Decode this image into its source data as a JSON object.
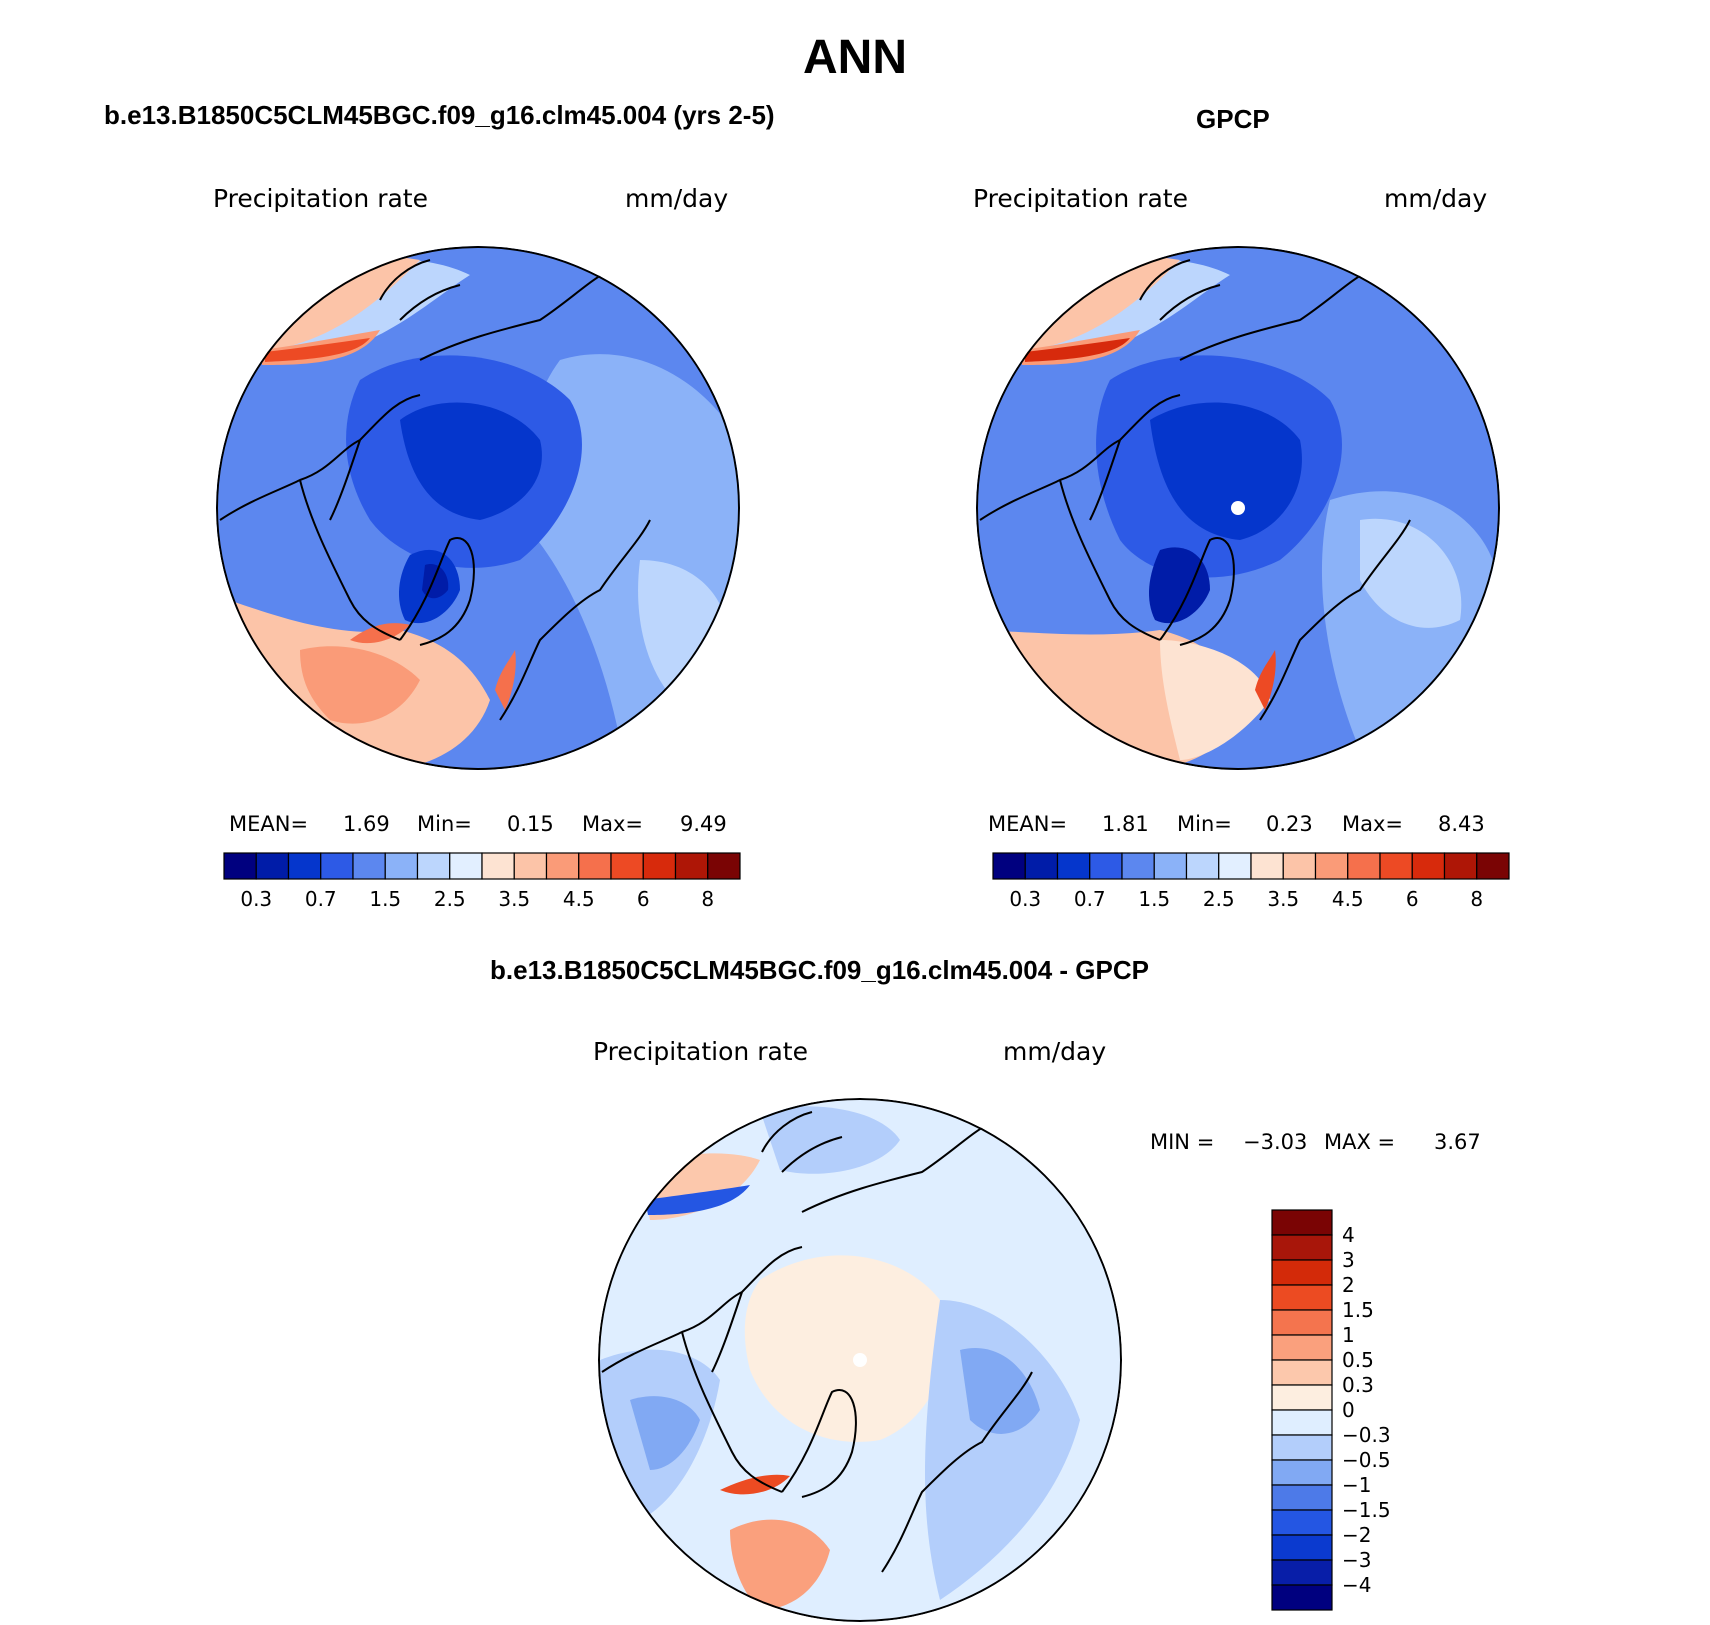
{
  "main_title": "ANN",
  "colors": {
    "seq": [
      "#00007f",
      "#001ca8",
      "#0536cc",
      "#2d5ae6",
      "#5c87ef",
      "#8bb2f8",
      "#bcd6fd",
      "#e2efff",
      "#fde3d2",
      "#fcc4a8",
      "#fa9b78",
      "#f5704c",
      "#ed4a24",
      "#d72a0c",
      "#ae1606",
      "#7a0404"
    ],
    "diff": [
      "#00007f",
      "#081ea8",
      "#0b3acf",
      "#2456e3",
      "#4d7ae8",
      "#81a9f3",
      "#b3cefb",
      "#dfeeff",
      "#fdeee0",
      "#fcc8ac",
      "#faa07d",
      "#f4744e",
      "#ec4b22",
      "#d32a09",
      "#a8160a",
      "#7a0404"
    ]
  },
  "panels": [
    {
      "title": "b.e13.B1850C5CLM45BGC.f09_g16.clm45.004 (yrs 2-5)",
      "variable": "Precipitation rate",
      "units": "mm/day",
      "stats": {
        "mean_label": "MEAN=",
        "mean": "1.69",
        "min_label": "Min=",
        "min": "0.15",
        "max_label": "Max=",
        "max": "9.49"
      }
    },
    {
      "title": "GPCP",
      "variable": "Precipitation rate",
      "units": "mm/day",
      "stats": {
        "mean_label": "MEAN=",
        "mean": "1.81",
        "min_label": "Min=",
        "min": "0.23",
        "max_label": "Max=",
        "max": "8.43"
      }
    },
    {
      "title": "b.e13.B1850C5CLM45BGC.f09_g16.clm45.004 - GPCP",
      "variable": "Precipitation rate",
      "units": "mm/day",
      "stats": {
        "min_label": "MIN =",
        "min": "−3.03",
        "max_label": "MAX =",
        "max": "3.67"
      }
    }
  ],
  "chart_data": [
    {
      "type": "heatmap",
      "projection": "north-polar-stereographic",
      "title": "b.e13.B1850C5CLM45BGC.f09_g16.clm45.004 (yrs 2-5)",
      "variable": "Precipitation rate",
      "units": "mm/day",
      "mean": 1.69,
      "min": 0.15,
      "max": 9.49,
      "colorbar_levels": [
        0.2,
        0.3,
        0.5,
        0.7,
        1,
        1.5,
        2,
        2.5,
        3,
        3.5,
        4,
        4.5,
        5,
        6,
        7,
        8
      ],
      "colorbar_tick_labels": [
        "0.3",
        "0.7",
        "1.5",
        "2.5",
        "3.5",
        "4.5",
        "6",
        "8"
      ]
    },
    {
      "type": "heatmap",
      "projection": "north-polar-stereographic",
      "title": "GPCP",
      "variable": "Precipitation rate",
      "units": "mm/day",
      "mean": 1.81,
      "min": 0.23,
      "max": 8.43,
      "colorbar_levels": [
        0.2,
        0.3,
        0.5,
        0.7,
        1,
        1.5,
        2,
        2.5,
        3,
        3.5,
        4,
        4.5,
        5,
        6,
        7,
        8
      ],
      "colorbar_tick_labels": [
        "0.3",
        "0.7",
        "1.5",
        "2.5",
        "3.5",
        "4.5",
        "6",
        "8"
      ]
    },
    {
      "type": "heatmap",
      "projection": "north-polar-stereographic",
      "title": "b.e13.B1850C5CLM45BGC.f09_g16.clm45.004 - GPCP",
      "variable": "Precipitation rate",
      "units": "mm/day",
      "min": -3.03,
      "max": 3.67,
      "colorbar_levels": [
        -4,
        -3,
        -2,
        -1.5,
        -1,
        -0.5,
        -0.3,
        0,
        0.3,
        0.5,
        1,
        1.5,
        2,
        3,
        4
      ],
      "colorbar_tick_labels": [
        "4",
        "3",
        "2",
        "1.5",
        "1",
        "0.5",
        "0.3",
        "0",
        "−0.3",
        "−0.5",
        "−1",
        "−1.5",
        "−2",
        "−3",
        "−4"
      ]
    }
  ]
}
